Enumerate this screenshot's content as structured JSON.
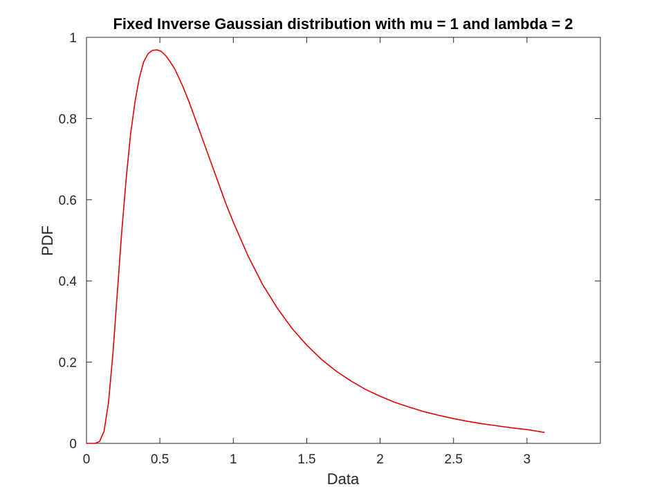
{
  "chart_data": {
    "type": "line",
    "title": "Fixed Inverse Gaussian distribution with mu = 1 and lambda = 2",
    "xlabel": "Data",
    "ylabel": "PDF",
    "xlim": [
      0,
      3.5
    ],
    "ylim": [
      0,
      1
    ],
    "xticks": [
      0,
      0.5,
      1,
      1.5,
      2,
      2.5,
      3
    ],
    "xtick_labels": [
      "0",
      "0.5",
      "1",
      "1.5",
      "2",
      "2.5",
      "3"
    ],
    "yticks": [
      0,
      0.2,
      0.4,
      0.6,
      0.8,
      1
    ],
    "ytick_labels": [
      "0",
      "0.2",
      "0.4",
      "0.6",
      "0.8",
      "1"
    ],
    "grid": false,
    "legend": null,
    "series": [
      {
        "color": "#e00000",
        "x": [
          0,
          0.03,
          0.06,
          0.09,
          0.12,
          0.15,
          0.18,
          0.21,
          0.24,
          0.27,
          0.3,
          0.33,
          0.36,
          0.39,
          0.42,
          0.45,
          0.48,
          0.5,
          0.51,
          0.54,
          0.57,
          0.6,
          0.63,
          0.66,
          0.7,
          0.75,
          0.8,
          0.85,
          0.9,
          0.95,
          1,
          1.1,
          1.2,
          1.3,
          1.4,
          1.5,
          1.6,
          1.7,
          1.8,
          1.9,
          2,
          2.1,
          2.2,
          2.3,
          2.4,
          2.5,
          2.6,
          2.7,
          2.8,
          2.9,
          3,
          3.12
        ],
        "y": [
          0,
          0,
          0,
          0.005,
          0.03,
          0.1,
          0.22,
          0.37,
          0.52,
          0.65,
          0.76,
          0.84,
          0.9,
          0.94,
          0.96,
          0.968,
          0.969,
          0.967,
          0.965,
          0.955,
          0.94,
          0.923,
          0.9,
          0.876,
          0.84,
          0.79,
          0.74,
          0.69,
          0.64,
          0.59,
          0.545,
          0.462,
          0.391,
          0.333,
          0.283,
          0.242,
          0.207,
          0.178,
          0.154,
          0.133,
          0.116,
          0.101,
          0.089,
          0.078,
          0.069,
          0.061,
          0.054,
          0.048,
          0.043,
          0.038,
          0.034,
          0.027
        ]
      }
    ]
  }
}
